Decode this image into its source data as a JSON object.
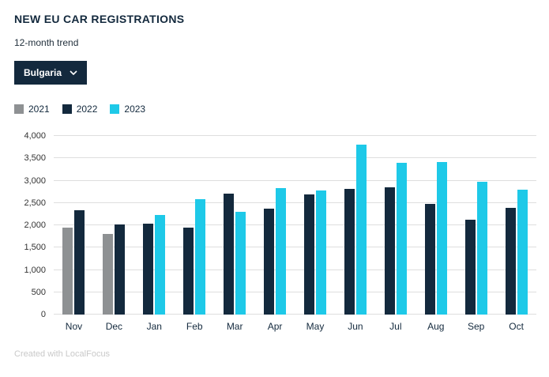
{
  "header": {
    "title": "NEW EU CAR REGISTRATIONS",
    "subtitle": "12-month trend"
  },
  "filter": {
    "selected": "Bulgaria"
  },
  "footer": {
    "credit": "Created with LocalFocus"
  },
  "chart_data": {
    "type": "bar",
    "title": "NEW EU CAR REGISTRATIONS",
    "subtitle": "12-month trend",
    "categories": [
      "Nov",
      "Dec",
      "Jan",
      "Feb",
      "Mar",
      "Apr",
      "May",
      "Jun",
      "Jul",
      "Aug",
      "Sep",
      "Oct"
    ],
    "series": [
      {
        "name": "2021",
        "color": "#8e9193",
        "values": [
          1940,
          1800,
          null,
          null,
          null,
          null,
          null,
          null,
          null,
          null,
          null,
          null
        ]
      },
      {
        "name": "2022",
        "color": "#13293d",
        "values": [
          2330,
          2020,
          2040,
          1940,
          2700,
          2370,
          2690,
          2820,
          2850,
          2480,
          2130,
          2390
        ]
      },
      {
        "name": "2023",
        "color": "#1ec9e8",
        "values": [
          null,
          null,
          2230,
          2590,
          2310,
          2840,
          2780,
          3800,
          3390,
          3420,
          2980,
          2790
        ]
      }
    ],
    "ylim": [
      0,
      4000
    ],
    "ytick_step": 500,
    "ytick_labels": [
      "0",
      "500",
      "1,000",
      "1,500",
      "2,000",
      "2,500",
      "3,000",
      "3,500",
      "4,000"
    ],
    "grid": true,
    "legend_position": "top-left"
  }
}
